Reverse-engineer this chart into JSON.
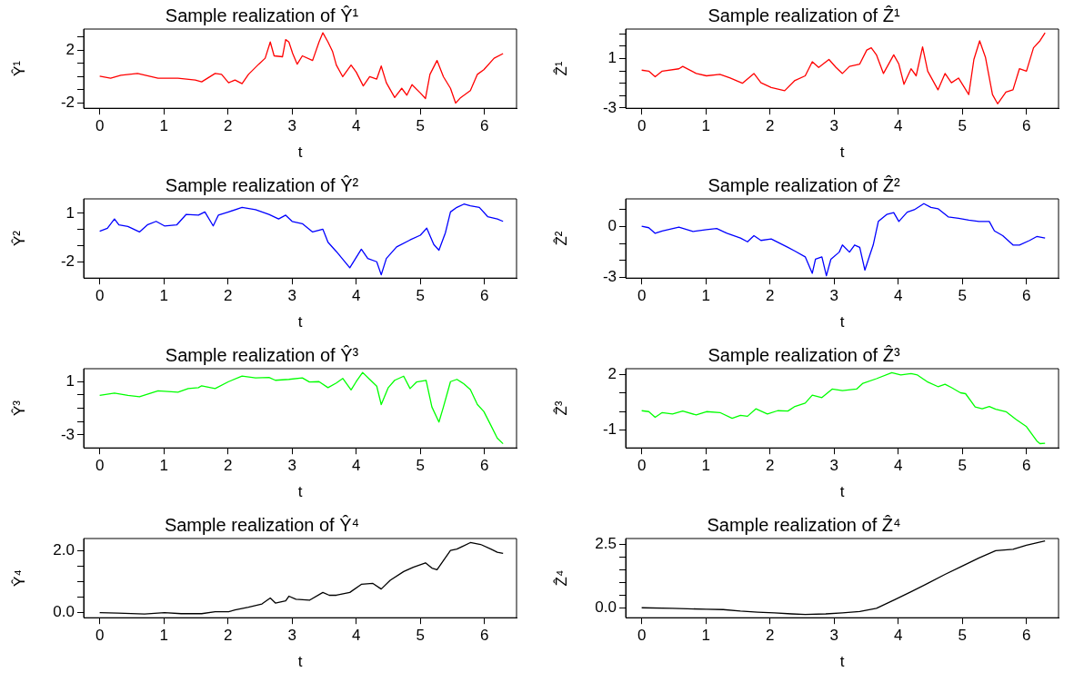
{
  "chart_data": [
    {
      "type": "line",
      "title": "Sample realization of Ŷ¹",
      "xlabel": "t",
      "ylabel": "Ŷ¹",
      "legend": false,
      "marker": "none",
      "xlim": [
        -0.25,
        6.5
      ],
      "xticks": [
        0,
        1,
        2,
        3,
        4,
        5,
        6
      ],
      "ylim": [
        -2.39,
        3.61
      ],
      "yticks": [
        -2,
        {
          "value": -1,
          "label": null
        },
        {
          "value": 0,
          "label": null
        },
        {
          "value": 1,
          "label": null
        },
        2,
        {
          "value": 3,
          "label": null
        }
      ],
      "series": [
        {
          "color": "#ff0000",
          "x": [
            0,
            0.17,
            0.33,
            0.59,
            0.91,
            1.22,
            1.49,
            1.59,
            1.8,
            1.9,
            2.01,
            2.11,
            2.22,
            2.32,
            2.48,
            2.58,
            2.66,
            2.72,
            2.85,
            2.9,
            2.95,
            3.01,
            3.08,
            3.16,
            3.32,
            3.42,
            3.48,
            3.56,
            3.63,
            3.69,
            3.79,
            3.92,
            4,
            4.11,
            4.21,
            4.32,
            4.39,
            4.47,
            4.6,
            4.71,
            4.79,
            4.87,
            5,
            5.08,
            5.15,
            5.26,
            5.36,
            5.47,
            5.55,
            5.63,
            5.78,
            5.89,
            5.99,
            6.15,
            6.29
          ],
          "values": [
            0.04,
            -0.11,
            0.11,
            0.25,
            -0.11,
            -0.11,
            -0.25,
            -0.39,
            0.25,
            0.18,
            -0.46,
            -0.25,
            -0.53,
            0.18,
            0.95,
            1.4,
            2.63,
            1.58,
            1.51,
            2.81,
            2.63,
            1.75,
            0.95,
            1.58,
            1.23,
            2.63,
            3.33,
            2.63,
            1.93,
            0.88,
            0,
            0.88,
            0.35,
            -0.7,
            0,
            -0.18,
            0.81,
            -0.46,
            -1.58,
            -0.88,
            -1.4,
            -0.6,
            -1.23,
            -1.65,
            0.18,
            1.23,
            0,
            -0.88,
            -2,
            -1.58,
            -1.05,
            0.18,
            0.53,
            1.4,
            1.75
          ]
        }
      ]
    },
    {
      "type": "line",
      "title": "Sample realization of Ẑ¹",
      "xlabel": "t",
      "ylabel": "Ẑ¹",
      "legend": false,
      "marker": "none",
      "xlim": [
        -0.25,
        6.5
      ],
      "xticks": [
        0,
        1,
        2,
        3,
        4,
        5,
        6
      ],
      "ylim": [
        -3.02,
        3.38
      ],
      "yticks": [
        -3,
        {
          "value": -2,
          "label": null
        },
        {
          "value": -1,
          "label": null
        },
        {
          "value": 0,
          "label": null
        },
        1,
        {
          "value": 2,
          "label": null
        },
        {
          "value": 3,
          "label": null
        }
      ],
      "series": [
        {
          "color": "#ff0000",
          "x": [
            0,
            0.11,
            0.21,
            0.32,
            0.58,
            0.64,
            0.85,
            1.01,
            1.22,
            1.38,
            1.57,
            1.75,
            1.86,
            2.02,
            2.23,
            2.39,
            2.55,
            2.66,
            2.76,
            2.92,
            3.03,
            3.13,
            3.24,
            3.4,
            3.51,
            3.58,
            3.66,
            3.77,
            3.93,
            4.01,
            4.09,
            4.2,
            4.28,
            4.38,
            4.46,
            4.62,
            4.73,
            4.83,
            4.94,
            5.1,
            5.18,
            5.27,
            5.36,
            5.47,
            5.55,
            5.68,
            5.79,
            5.89,
            6,
            6.11,
            6.21,
            6.29
          ],
          "values": [
            0.06,
            -0.02,
            -0.47,
            -0.02,
            0.17,
            0.36,
            -0.21,
            -0.4,
            -0.28,
            -0.58,
            -1,
            -0.21,
            -0.96,
            -1.34,
            -1.6,
            -0.77,
            -0.4,
            0.74,
            0.28,
            0.92,
            0.28,
            -0.21,
            0.36,
            0.55,
            1.68,
            1.87,
            1.3,
            -0.21,
            1.3,
            0.55,
            -1.08,
            0.17,
            -0.4,
            1.94,
            -0.02,
            -1.53,
            -0.21,
            -0.96,
            -0.58,
            -1.91,
            0.92,
            2.43,
            1.11,
            -1.91,
            -2.66,
            -1.72,
            -1.53,
            0.17,
            -0.02,
            1.87,
            2.43,
            3.08
          ]
        }
      ]
    },
    {
      "type": "line",
      "title": "Sample realization of Ŷ²",
      "xlabel": "t",
      "ylabel": "Ŷ²",
      "legend": false,
      "marker": "none",
      "xlim": [
        -0.25,
        6.5
      ],
      "xticks": [
        0,
        1,
        2,
        3,
        4,
        5,
        6
      ],
      "ylim": [
        -2.97,
        1.89
      ],
      "yticks": [
        -2,
        {
          "value": -1,
          "label": null
        },
        {
          "value": 0,
          "label": null
        },
        1
      ],
      "series": [
        {
          "color": "#0000ff",
          "x": [
            0,
            0.12,
            0.23,
            0.3,
            0.44,
            0.62,
            0.75,
            0.88,
            1.01,
            1.2,
            1.35,
            1.54,
            1.64,
            1.77,
            1.85,
            2.01,
            2.22,
            2.43,
            2.64,
            2.79,
            2.9,
            3,
            3.16,
            3.32,
            3.48,
            3.56,
            3.69,
            3.9,
            4.08,
            4.18,
            4.32,
            4.39,
            4.47,
            4.63,
            4.84,
            5,
            5.1,
            5.21,
            5.29,
            5.39,
            5.47,
            5.57,
            5.68,
            5.78,
            5.92,
            6.05,
            6.2,
            6.29
          ],
          "values": [
            -0.09,
            0.09,
            0.66,
            0.29,
            0.2,
            -0.14,
            0.31,
            0.51,
            0.23,
            0.29,
            0.94,
            0.89,
            1.09,
            0.23,
            0.89,
            1.09,
            1.37,
            1.23,
            0.94,
            0.66,
            0.89,
            0.51,
            0.37,
            -0.14,
            0.03,
            -0.77,
            -1.34,
            -2.34,
            -1.2,
            -1.77,
            -1.97,
            -2.77,
            -1.77,
            -1.06,
            -0.63,
            -0.34,
            0.09,
            -0.91,
            -1.26,
            -0.2,
            1.09,
            1.37,
            1.57,
            1.46,
            1.37,
            0.8,
            0.66,
            0.51
          ]
        }
      ]
    },
    {
      "type": "line",
      "title": "Sample realization of Ẑ²",
      "xlabel": "t",
      "ylabel": "Ẑ²",
      "legend": false,
      "marker": "none",
      "xlim": [
        -0.25,
        6.5
      ],
      "xticks": [
        0,
        1,
        2,
        3,
        4,
        5,
        6
      ],
      "ylim": [
        -3.03,
        1.64
      ],
      "yticks": [
        -3,
        {
          "value": -2,
          "label": null
        },
        {
          "value": -1,
          "label": null
        },
        0,
        {
          "value": 1,
          "label": null
        }
      ],
      "series": [
        {
          "color": "#0000ff",
          "x": [
            0,
            0.11,
            0.21,
            0.32,
            0.58,
            0.8,
            1.01,
            1.17,
            1.33,
            1.54,
            1.65,
            1.75,
            1.86,
            2.02,
            2.28,
            2.39,
            2.55,
            2.66,
            2.71,
            2.81,
            2.88,
            2.95,
            3.08,
            3.13,
            3.24,
            3.32,
            3.4,
            3.48,
            3.56,
            3.61,
            3.69,
            3.82,
            3.93,
            4.01,
            4.14,
            4.25,
            4.4,
            4.51,
            4.62,
            4.78,
            4.94,
            5.1,
            5.26,
            5.42,
            5.5,
            5.63,
            5.79,
            5.89,
            6.05,
            6.16,
            6.29
          ],
          "values": [
            0.03,
            -0.06,
            -0.39,
            -0.25,
            -0.03,
            -0.28,
            -0.17,
            -0.11,
            -0.39,
            -0.67,
            -0.89,
            -0.53,
            -0.81,
            -0.72,
            -1.22,
            -1.44,
            -1.78,
            -2.75,
            -1.92,
            -1.78,
            -2.89,
            -1.92,
            -1.5,
            -1.08,
            -1.5,
            -1.08,
            -1.22,
            -2.56,
            -1.64,
            -1.08,
            0.31,
            0.72,
            0.83,
            0.31,
            0.86,
            1,
            1.36,
            1.14,
            1.06,
            0.58,
            0.5,
            0.39,
            0.31,
            0.31,
            -0.25,
            -0.53,
            -1.08,
            -1.08,
            -0.81,
            -0.58,
            -0.67
          ]
        }
      ]
    },
    {
      "type": "line",
      "title": "Sample realization of Ŷ³",
      "xlabel": "t",
      "ylabel": "Ŷ³",
      "legend": false,
      "marker": "none",
      "xlim": [
        -0.25,
        6.5
      ],
      "xticks": [
        0,
        1,
        2,
        3,
        4,
        5,
        6
      ],
      "ylim": [
        -3.97,
        1.97
      ],
      "yticks": [
        -3,
        {
          "value": -2,
          "label": null
        },
        {
          "value": -1,
          "label": null
        },
        {
          "value": 0,
          "label": null
        },
        1
      ],
      "series": [
        {
          "color": "#00ff00",
          "x": [
            0,
            0.23,
            0.44,
            0.62,
            0.91,
            1.22,
            1.38,
            1.54,
            1.59,
            1.8,
            2.01,
            2.22,
            2.43,
            2.64,
            2.74,
            2.95,
            3.16,
            3.27,
            3.42,
            3.56,
            3.69,
            3.79,
            3.92,
            4,
            4.1,
            4.21,
            4.32,
            4.39,
            4.5,
            4.6,
            4.74,
            4.84,
            4.94,
            5.09,
            5.18,
            5.29,
            5.36,
            5.47,
            5.57,
            5.68,
            5.78,
            5.89,
            5.99,
            6.1,
            6.2,
            6.29
          ],
          "values": [
            -0.03,
            0.14,
            -0.03,
            -0.14,
            0.31,
            0.21,
            0.48,
            0.55,
            0.69,
            0.48,
            1,
            1.41,
            1.28,
            1.31,
            1.1,
            1.17,
            1.28,
            0.97,
            1,
            0.55,
            0.9,
            1.24,
            0.38,
            1,
            1.69,
            1.17,
            0.66,
            -0.72,
            0.55,
            1.1,
            1.41,
            0.48,
            0.97,
            1.1,
            -0.9,
            -2.03,
            -0.9,
            1,
            1.17,
            0.83,
            0.41,
            -0.72,
            -1.24,
            -2.28,
            -3.24,
            -3.66
          ]
        }
      ]
    },
    {
      "type": "line",
      "title": "Sample realization of Ẑ³",
      "xlabel": "t",
      "ylabel": "Ẑ³",
      "legend": false,
      "marker": "none",
      "xlim": [
        -0.25,
        6.5
      ],
      "xticks": [
        0,
        1,
        2,
        3,
        4,
        5,
        6
      ],
      "ylim": [
        -1.97,
        2.31
      ],
      "yticks": [
        -1,
        {
          "value": 0,
          "label": null
        },
        {
          "value": 1,
          "label": null
        },
        2
      ],
      "series": [
        {
          "color": "#00ff00",
          "x": [
            0,
            0.11,
            0.21,
            0.32,
            0.48,
            0.64,
            0.85,
            1.01,
            1.22,
            1.41,
            1.54,
            1.65,
            1.78,
            1.96,
            2.12,
            2.28,
            2.39,
            2.55,
            2.66,
            2.81,
            2.97,
            3.13,
            3.35,
            3.45,
            3.66,
            3.9,
            4.04,
            4.2,
            4.3,
            4.46,
            4.62,
            4.73,
            4.83,
            4.97,
            5.05,
            5.2,
            5.31,
            5.42,
            5.52,
            5.68,
            5.84,
            6,
            6.16,
            6.21,
            6.29
          ],
          "values": [
            0.04,
            -0.01,
            -0.32,
            -0.06,
            -0.14,
            0.02,
            -0.19,
            -0.01,
            -0.06,
            -0.37,
            -0.21,
            -0.26,
            0.14,
            -0.14,
            0.04,
            0.02,
            0.27,
            0.45,
            0.88,
            0.75,
            1.21,
            1.13,
            1.21,
            1.52,
            1.77,
            2.1,
            1.97,
            2.05,
            1.97,
            1.59,
            1.34,
            1.47,
            1.29,
            1.01,
            0.96,
            0.24,
            0.14,
            0.27,
            0.12,
            -0.01,
            -0.44,
            -0.82,
            -1.59,
            -1.74,
            -1.72
          ]
        }
      ]
    },
    {
      "type": "line",
      "title": "Sample realization of Ŷ⁴",
      "xlabel": "t",
      "ylabel": "Ŷ⁴",
      "legend": false,
      "marker": "none",
      "xlim": [
        -0.25,
        6.5
      ],
      "xticks": [
        0,
        1,
        2,
        3,
        4,
        5,
        6
      ],
      "ylim": [
        -0.16,
        2.38
      ],
      "yticks": [
        {
          "value": 0,
          "label": "0.0"
        },
        {
          "value": 0.5,
          "label": null
        },
        {
          "value": 1,
          "label": null
        },
        {
          "value": 1.5,
          "label": null
        },
        {
          "value": 2,
          "label": "2.0"
        }
      ],
      "series": [
        {
          "color": "#000000",
          "x": [
            0,
            0.28,
            0.7,
            1.01,
            1.27,
            1.59,
            1.8,
            2.01,
            2.11,
            2.32,
            2.53,
            2.66,
            2.74,
            2.9,
            2.95,
            3.06,
            3.27,
            3.48,
            3.58,
            3.69,
            3.9,
            4.08,
            4.26,
            4.39,
            4.53,
            4.74,
            4.89,
            5.08,
            5.18,
            5.26,
            5.47,
            5.57,
            5.78,
            5.94,
            6.1,
            6.2,
            6.29
          ],
          "values": [
            0,
            -0.01,
            -0.04,
            0,
            -0.03,
            -0.03,
            0.03,
            0.03,
            0.09,
            0.18,
            0.28,
            0.47,
            0.31,
            0.38,
            0.53,
            0.43,
            0.4,
            0.65,
            0.56,
            0.56,
            0.65,
            0.91,
            0.94,
            0.76,
            1.04,
            1.32,
            1.46,
            1.6,
            1.43,
            1.38,
            2,
            2.04,
            2.25,
            2.19,
            2.04,
            1.94,
            1.9
          ]
        }
      ]
    },
    {
      "type": "line",
      "title": "Sample realization of Ẑ⁴",
      "xlabel": "t",
      "ylabel": "Ẑ⁴",
      "legend": false,
      "marker": "none",
      "xlim": [
        -0.25,
        6.5
      ],
      "xticks": [
        0,
        1,
        2,
        3,
        4,
        5,
        6
      ],
      "ylim": [
        -0.39,
        2.72
      ],
      "yticks": [
        {
          "value": 0,
          "label": "0.0"
        },
        {
          "value": 0.5,
          "label": null
        },
        {
          "value": 1,
          "label": null
        },
        {
          "value": 1.5,
          "label": null
        },
        {
          "value": 2,
          "label": null
        },
        {
          "value": 2.5,
          "label": "2.5"
        }
      ],
      "series": [
        {
          "color": "#000000",
          "x": [
            0,
            0.48,
            1.01,
            1.27,
            1.54,
            1.81,
            2.07,
            2.34,
            2.55,
            2.87,
            3.13,
            3.4,
            3.66,
            3.93,
            4.2,
            4.46,
            4.73,
            4.99,
            5.26,
            5.52,
            5.79,
            6,
            6.29
          ],
          "values": [
            0,
            -0.02,
            -0.06,
            -0.07,
            -0.13,
            -0.17,
            -0.2,
            -0.24,
            -0.26,
            -0.24,
            -0.2,
            -0.15,
            -0.02,
            0.3,
            0.63,
            0.96,
            1.31,
            1.63,
            1.96,
            2.24,
            2.3,
            2.46,
            2.63
          ]
        }
      ]
    }
  ]
}
